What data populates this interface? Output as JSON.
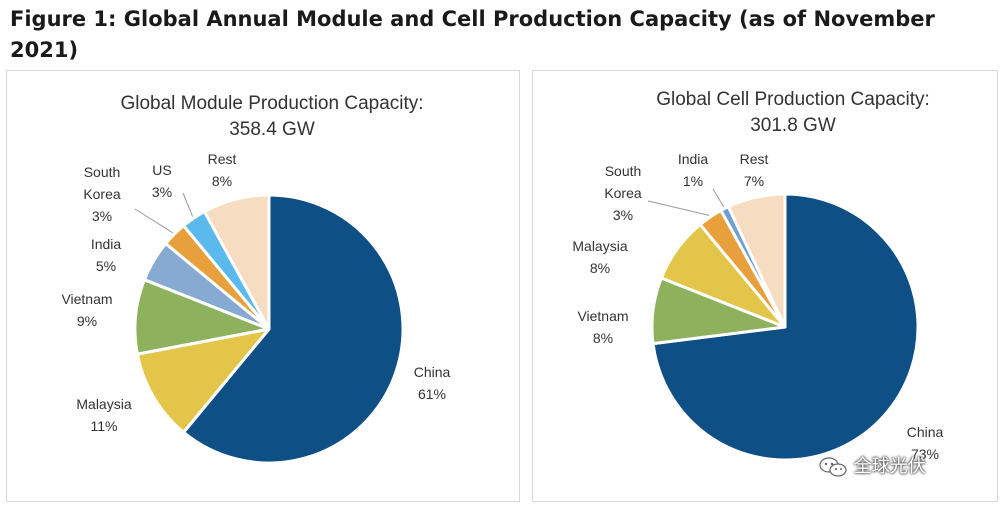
{
  "figure_title": "Figure 1: Global Annual Module and Cell Production Capacity (as of November 2021)",
  "watermark": "全球光伏",
  "colors": {
    "china": "#0e4f86",
    "malaysia": "#e3c649",
    "vietnam": "#8db15c",
    "india_module": "#87aad3",
    "south_korea": "#e8a03c",
    "us": "#5cb9ee",
    "rest": "#f6dcc0",
    "india_cell": "#6fa0d2"
  },
  "chart_data": [
    {
      "type": "pie",
      "title": "Global Module Production Capacity:",
      "subtitle": "358.4 GW",
      "start_angle_deg": 0,
      "direction": "clockwise",
      "slices": [
        {
          "key": "china",
          "label": [
            "China"
          ],
          "pct_label": "61%",
          "value": 61,
          "color_key": "china"
        },
        {
          "key": "malaysia",
          "label": [
            "Malaysia"
          ],
          "pct_label": "11%",
          "value": 11,
          "color_key": "malaysia"
        },
        {
          "key": "vietnam",
          "label": [
            "Vietnam"
          ],
          "pct_label": "9%",
          "value": 9,
          "color_key": "vietnam"
        },
        {
          "key": "india",
          "label": [
            "India"
          ],
          "pct_label": "5%",
          "value": 5,
          "color_key": "india_module"
        },
        {
          "key": "south-korea",
          "label": [
            "South",
            "Korea"
          ],
          "pct_label": "3%",
          "value": 3,
          "color_key": "south_korea"
        },
        {
          "key": "us",
          "label": [
            "US"
          ],
          "pct_label": "3%",
          "value": 3,
          "color_key": "us"
        },
        {
          "key": "rest",
          "label": [
            "Rest"
          ],
          "pct_label": "8%",
          "value": 8,
          "color_key": "rest"
        }
      ]
    },
    {
      "type": "pie",
      "title": "Global Cell Production Capacity:",
      "subtitle": "301.8 GW",
      "start_angle_deg": 0,
      "direction": "clockwise",
      "slices": [
        {
          "key": "china",
          "label": [
            "China"
          ],
          "pct_label": "73%",
          "value": 73,
          "color_key": "china"
        },
        {
          "key": "vietnam",
          "label": [
            "Vietnam"
          ],
          "pct_label": "8%",
          "value": 8,
          "color_key": "vietnam"
        },
        {
          "key": "malaysia",
          "label": [
            "Malaysia"
          ],
          "pct_label": "8%",
          "value": 8,
          "color_key": "malaysia"
        },
        {
          "key": "south-korea",
          "label": [
            "South",
            "Korea"
          ],
          "pct_label": "3%",
          "value": 3,
          "color_key": "south_korea"
        },
        {
          "key": "india",
          "label": [
            "India"
          ],
          "pct_label": "1%",
          "value": 1,
          "color_key": "india_cell"
        },
        {
          "key": "rest",
          "label": [
            "Rest"
          ],
          "pct_label": "7%",
          "value": 7,
          "color_key": "rest"
        }
      ]
    }
  ]
}
